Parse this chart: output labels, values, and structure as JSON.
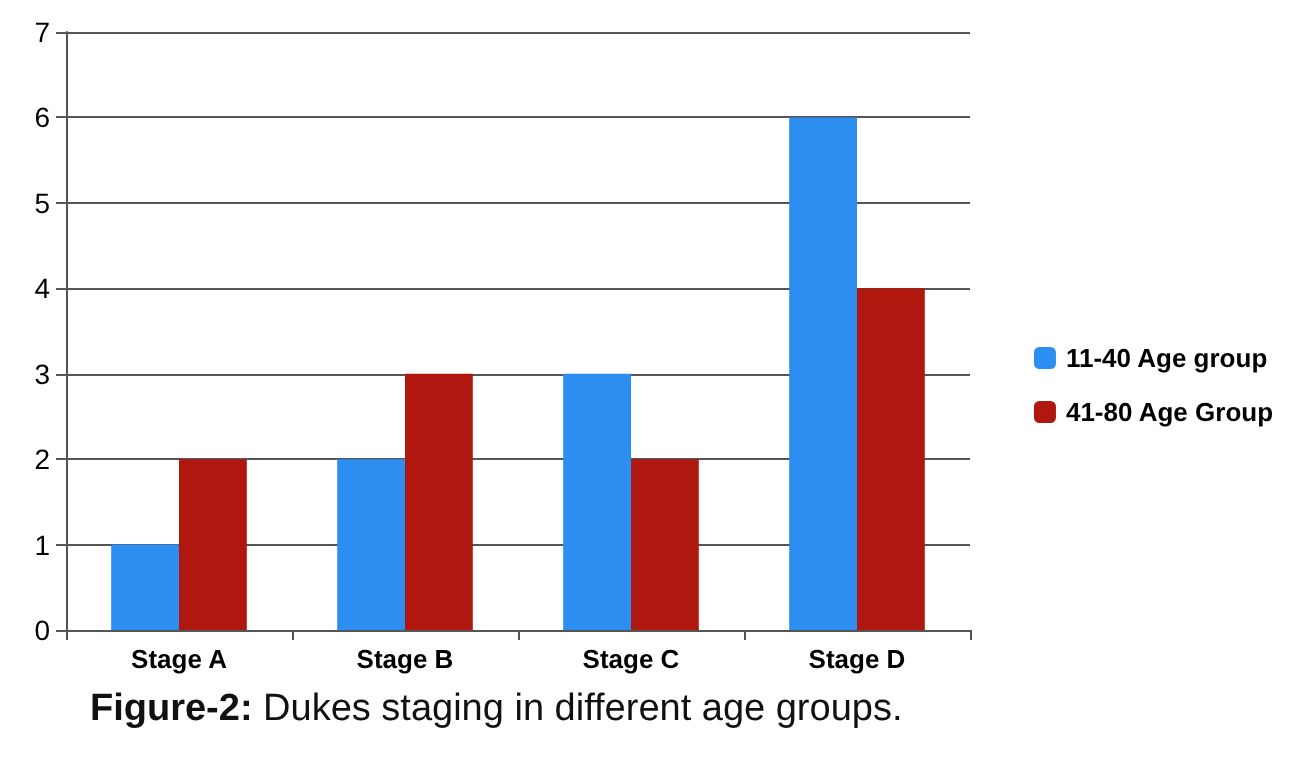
{
  "chart_data": {
    "type": "bar",
    "categories": [
      "Stage A",
      "Stage B",
      "Stage C",
      "Stage D"
    ],
    "series": [
      {
        "name": "11-40 Age group",
        "color": "#2b8ef0",
        "values": [
          1,
          2,
          3,
          6
        ]
      },
      {
        "name": "41-80 Age Group",
        "color": "#b0170e",
        "values": [
          2,
          3,
          2,
          4
        ]
      }
    ],
    "ylim": [
      0,
      7
    ],
    "yticks": [
      0,
      1,
      2,
      3,
      4,
      5,
      6,
      7
    ],
    "grid": "y",
    "legend": "right",
    "annotations": [
      "Figure-2: Dukes staging in different age groups."
    ]
  }
}
